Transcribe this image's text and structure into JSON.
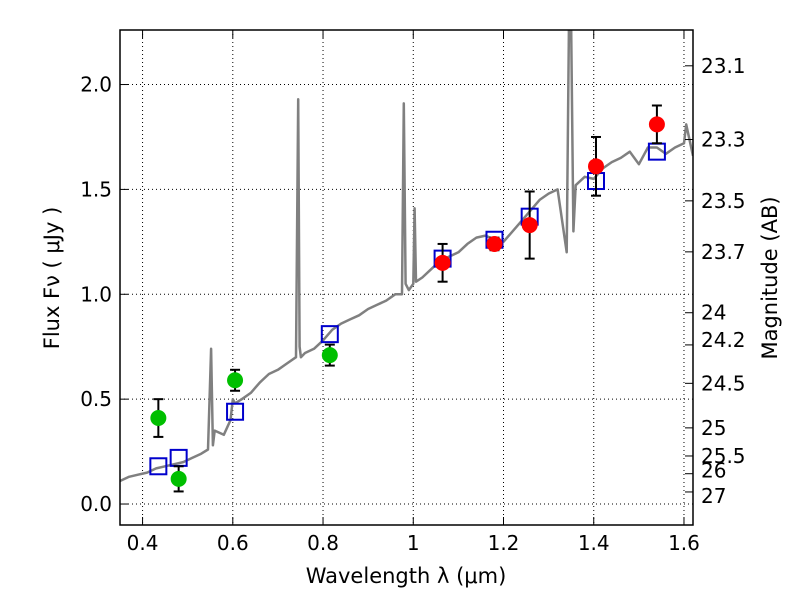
{
  "chart_data": {
    "type": "scatter",
    "title": "",
    "xlabel": "Wavelength  λ (μm)",
    "ylabel": "Flux  Fν  ( μJy )",
    "y2label": "Magnitude (AB)",
    "xlim": [
      0.35,
      1.62
    ],
    "ylim": [
      -0.1,
      2.26
    ],
    "grid": true,
    "x_ticks": [
      0.4,
      0.6,
      0.8,
      1.0,
      1.2,
      1.4,
      1.6
    ],
    "x_tick_labels": [
      "0.4",
      "0.6",
      "0.8",
      "1",
      "1.2",
      "1.4",
      "1.6"
    ],
    "y_ticks": [
      0.0,
      0.5,
      1.0,
      1.5,
      2.0
    ],
    "y_tick_labels": [
      "0.0",
      "0.5",
      "1.0",
      "1.5",
      "2.0"
    ],
    "mag_ticks": [
      23.1,
      23.3,
      23.5,
      23.7,
      24,
      24.2,
      24.5,
      25,
      25.5,
      26,
      27
    ],
    "mag_tick_labels": [
      "23.1",
      "23.3",
      "23.5",
      "23.7",
      "24",
      "24.2",
      "24.5",
      "25",
      "25.5",
      "26",
      "27"
    ],
    "colors": {
      "spectrum": "#808080",
      "green": "#00bf00",
      "red": "#ff0000",
      "squares": "#0000cc",
      "errorbar": "#000000"
    },
    "series": [
      {
        "name": "model spectrum",
        "style": "line",
        "x": [
          0.35,
          0.37,
          0.39,
          0.41,
          0.43,
          0.45,
          0.47,
          0.49,
          0.51,
          0.53,
          0.545,
          0.552,
          0.556,
          0.56,
          0.58,
          0.595,
          0.6,
          0.605,
          0.62,
          0.64,
          0.66,
          0.68,
          0.7,
          0.72,
          0.74,
          0.745,
          0.748,
          0.751,
          0.76,
          0.78,
          0.8,
          0.82,
          0.84,
          0.86,
          0.88,
          0.9,
          0.92,
          0.94,
          0.96,
          0.975,
          0.979,
          0.983,
          0.99,
          1.0,
          1.003,
          1.006,
          1.02,
          1.04,
          1.06,
          1.08,
          1.1,
          1.12,
          1.14,
          1.16,
          1.18,
          1.2,
          1.22,
          1.24,
          1.26,
          1.28,
          1.3,
          1.32,
          1.34,
          1.345,
          1.35,
          1.355,
          1.36,
          1.38,
          1.4,
          1.42,
          1.44,
          1.46,
          1.48,
          1.5,
          1.52,
          1.54,
          1.56,
          1.58,
          1.6,
          1.605,
          1.62
        ],
        "y": [
          0.11,
          0.13,
          0.14,
          0.15,
          0.17,
          0.18,
          0.19,
          0.2,
          0.22,
          0.24,
          0.26,
          0.74,
          0.28,
          0.35,
          0.33,
          0.4,
          0.5,
          0.48,
          0.5,
          0.53,
          0.58,
          0.62,
          0.64,
          0.67,
          0.7,
          1.93,
          0.75,
          0.7,
          0.72,
          0.74,
          0.78,
          0.83,
          0.86,
          0.88,
          0.9,
          0.93,
          0.95,
          0.97,
          1.0,
          1.0,
          1.91,
          1.05,
          1.02,
          1.05,
          1.41,
          1.06,
          1.08,
          1.12,
          1.16,
          1.18,
          1.2,
          1.24,
          1.27,
          1.28,
          1.26,
          1.25,
          1.3,
          1.35,
          1.4,
          1.45,
          1.48,
          1.5,
          1.2,
          2.26,
          2.26,
          1.3,
          1.52,
          1.56,
          1.55,
          1.6,
          1.63,
          1.65,
          1.68,
          1.62,
          1.7,
          1.7,
          1.67,
          1.7,
          1.72,
          1.81,
          1.66
        ]
      },
      {
        "name": "green detections",
        "style": "circle",
        "x": [
          0.435,
          0.48,
          0.605,
          0.815
        ],
        "y": [
          0.41,
          0.12,
          0.59,
          0.71
        ],
        "err": [
          0.09,
          0.06,
          0.05,
          0.05
        ]
      },
      {
        "name": "red detections",
        "style": "circle",
        "x": [
          1.065,
          1.18,
          1.258,
          1.405,
          1.54
        ],
        "y": [
          1.15,
          1.24,
          1.33,
          1.61,
          1.81
        ],
        "err": [
          0.09,
          0.03,
          0.16,
          0.14,
          0.09
        ]
      },
      {
        "name": "model photometry",
        "style": "square",
        "x": [
          0.435,
          0.48,
          0.605,
          0.815,
          1.065,
          1.18,
          1.258,
          1.405,
          1.54
        ],
        "y": [
          0.18,
          0.22,
          0.44,
          0.81,
          1.17,
          1.26,
          1.37,
          1.54,
          1.68
        ]
      }
    ]
  }
}
